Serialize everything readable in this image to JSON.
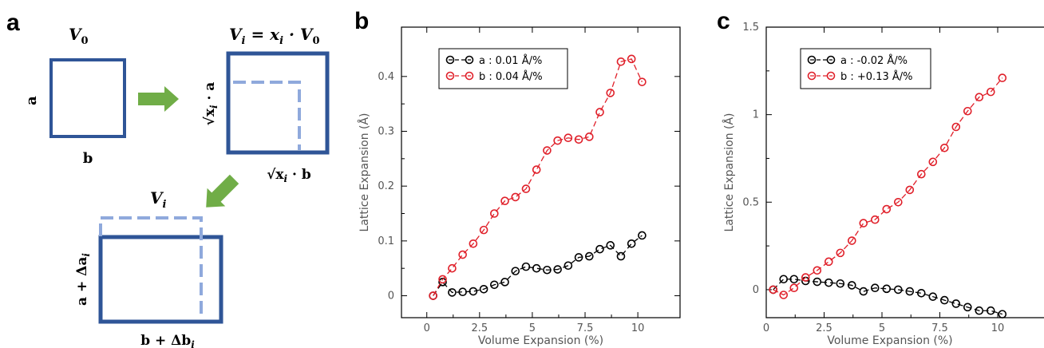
{
  "panels": {
    "a": {
      "letter": "a",
      "v0": "V",
      "v0_sub": "0",
      "vi_eq_lhs": "V",
      "vi_eq_lhs_sub": "i",
      "vi_eq_rhs": " = x",
      "vi_eq_rhs_sub": "i",
      "vi_eq_tail": " · V",
      "vi_eq_tail_sub": "0",
      "label_a": "a",
      "label_b": "b",
      "sqrt_a": "√x",
      "sqrt_a_sub": "i",
      "sqrt_a_tail": " · a",
      "sqrt_b": "√x",
      "sqrt_b_sub": "i",
      "sqrt_b_tail": " · b",
      "vi": "V",
      "vi_sub": "i",
      "a_delta": "a + Δa",
      "a_delta_sub": "i",
      "b_delta": "b + Δb",
      "b_delta_sub": "i"
    },
    "b": {
      "letter": "b"
    },
    "c": {
      "letter": "c"
    }
  },
  "colors": {
    "box": "#2f5597",
    "dashed": "#8fa9dc",
    "arrow": "#70ad47",
    "series_a": "#000000",
    "series_b": "#e0202a"
  },
  "chart_data": [
    {
      "type": "line",
      "panel": "b",
      "xlabel": "Volume Expansion (%)",
      "ylabel": "Lattice Expansion (Å)",
      "xlim": [
        -1.2,
        12
      ],
      "ylim": [
        -0.04,
        0.49
      ],
      "xticks": [
        0,
        2.5,
        5,
        7.5,
        10
      ],
      "xtick_labels": [
        "0",
        "2.5",
        "5",
        "7.5",
        "10"
      ],
      "yticks": [
        0,
        0.1,
        0.2,
        0.3,
        0.4
      ],
      "ytick_labels": [
        "0",
        "0.1",
        "0.2",
        "0.3",
        "0.4"
      ],
      "legend_position": "top-left",
      "series": [
        {
          "name": "a : 0.01 Å/%",
          "color": "#000000",
          "x": [
            0.3,
            0.75,
            1.2,
            1.7,
            2.2,
            2.7,
            3.2,
            3.7,
            4.2,
            4.7,
            5.2,
            5.7,
            6.2,
            6.7,
            7.2,
            7.7,
            8.2,
            8.7,
            9.2,
            9.7,
            10.2
          ],
          "y": [
            0,
            0.025,
            0.006,
            0.007,
            0.008,
            0.012,
            0.02,
            0.025,
            0.045,
            0.053,
            0.05,
            0.047,
            0.048,
            0.055,
            0.07,
            0.072,
            0.085,
            0.092,
            0.072,
            0.095,
            0.11
          ]
        },
        {
          "name": "b : 0.04 Å/%",
          "color": "#e0202a",
          "x": [
            0.3,
            0.75,
            1.2,
            1.7,
            2.2,
            2.7,
            3.2,
            3.7,
            4.2,
            4.7,
            5.2,
            5.7,
            6.2,
            6.7,
            7.2,
            7.7,
            8.2,
            8.7,
            9.2,
            9.7,
            10.2
          ],
          "y": [
            0,
            0.03,
            0.05,
            0.075,
            0.095,
            0.12,
            0.15,
            0.173,
            0.18,
            0.195,
            0.23,
            0.265,
            0.283,
            0.288,
            0.285,
            0.29,
            0.335,
            0.37,
            0.427,
            0.432,
            0.39
          ]
        }
      ]
    },
    {
      "type": "line",
      "panel": "c",
      "xlabel": "Volume Expansion (%)",
      "ylabel": "Lattice Expansion (Å)",
      "xlim": [
        0,
        12
      ],
      "ylim": [
        -0.16,
        1.5
      ],
      "xticks": [
        0,
        2.5,
        5,
        7.5,
        10
      ],
      "xtick_labels": [
        "0",
        "2.5",
        "5",
        "7.5",
        "10"
      ],
      "yticks": [
        0,
        0.5,
        1,
        1.5
      ],
      "ytick_labels": [
        "0",
        "0.5",
        "1",
        "1.5"
      ],
      "legend_position": "top-left",
      "series": [
        {
          "name": "a : -0.02 Å/%",
          "color": "#000000",
          "x": [
            0.3,
            0.75,
            1.2,
            1.7,
            2.2,
            2.7,
            3.2,
            3.7,
            4.2,
            4.7,
            5.2,
            5.7,
            6.2,
            6.7,
            7.2,
            7.7,
            8.2,
            8.7,
            9.2,
            9.7,
            10.2
          ],
          "y": [
            0,
            0.06,
            0.06,
            0.05,
            0.045,
            0.04,
            0.035,
            0.025,
            -0.01,
            0.01,
            0.005,
            0,
            -0.01,
            -0.02,
            -0.04,
            -0.06,
            -0.08,
            -0.1,
            -0.12,
            -0.12,
            -0.14
          ]
        },
        {
          "name": "b : +0.13 Å/%",
          "color": "#e0202a",
          "x": [
            0.3,
            0.75,
            1.2,
            1.7,
            2.2,
            2.7,
            3.2,
            3.7,
            4.2,
            4.7,
            5.2,
            5.7,
            6.2,
            6.7,
            7.2,
            7.7,
            8.2,
            8.7,
            9.2,
            9.7,
            10.2
          ],
          "y": [
            0,
            -0.03,
            0.01,
            0.07,
            0.11,
            0.16,
            0.21,
            0.28,
            0.38,
            0.4,
            0.46,
            0.5,
            0.57,
            0.66,
            0.73,
            0.81,
            0.93,
            1.02,
            1.1,
            1.13,
            1.21
          ]
        }
      ]
    }
  ]
}
